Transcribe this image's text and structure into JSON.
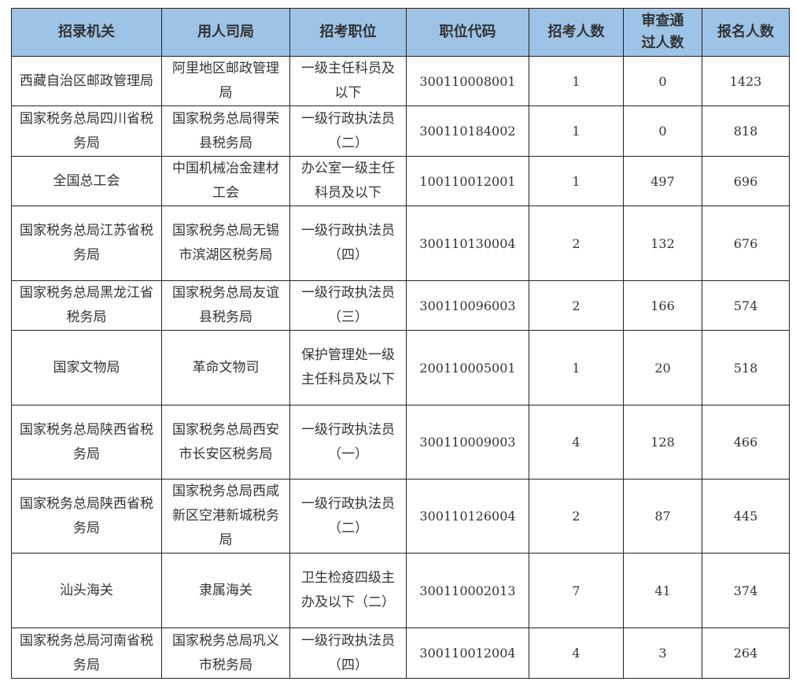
{
  "colors": {
    "header_bg": "#9DC3E6",
    "border": "#222222",
    "text": "#333333"
  },
  "table": {
    "headers": [
      "招录机关",
      "用人司局",
      "招考职位",
      "职位代码",
      "招考人数",
      "审查通过人数",
      "报名人数"
    ],
    "rows": [
      [
        "西藏自治区邮政管理局",
        "阿里地区邮政管理局",
        "一级主任科员及以下",
        "300110008001",
        "1",
        "0",
        "1423"
      ],
      [
        "国家税务总局四川省税务局",
        "国家税务总局得荣县税务局",
        "一级行政执法员（二）",
        "300110184002",
        "1",
        "0",
        "818"
      ],
      [
        "全国总工会",
        "中国机械冶金建材工会",
        "办公室一级主任科员及以下",
        "100110012001",
        "1",
        "497",
        "696"
      ],
      [
        "国家税务总局江苏省税务局",
        "国家税务总局无锡市滨湖区税务局",
        "一级行政执法员（四）",
        "300110130004",
        "2",
        "132",
        "676"
      ],
      [
        "国家税务总局黑龙江省税务局",
        "国家税务总局友谊县税务局",
        "一级行政执法员（三）",
        "300110096003",
        "2",
        "166",
        "574"
      ],
      [
        "国家文物局",
        "革命文物司",
        "保护管理处一级主任科员及以下",
        "200110005001",
        "1",
        "20",
        "518"
      ],
      [
        "国家税务总局陕西省税务局",
        "国家税务总局西安市长安区税务局",
        "一级行政执法员（一）",
        "300110009003",
        "4",
        "128",
        "466"
      ],
      [
        "国家税务总局陕西省税务局",
        "国家税务总局西咸新区空港新城税务局",
        "一级行政执法员（二）",
        "300110126004",
        "2",
        "87",
        "445"
      ],
      [
        "汕头海关",
        "隶属海关",
        "卫生检疫四级主办及以下（二）",
        "300110002013",
        "7",
        "41",
        "374"
      ],
      [
        "国家税务总局河南省税务局",
        "国家税务总局巩义市税务局",
        "一级行政执法员（四）",
        "300110012004",
        "4",
        "3",
        "264"
      ]
    ]
  }
}
